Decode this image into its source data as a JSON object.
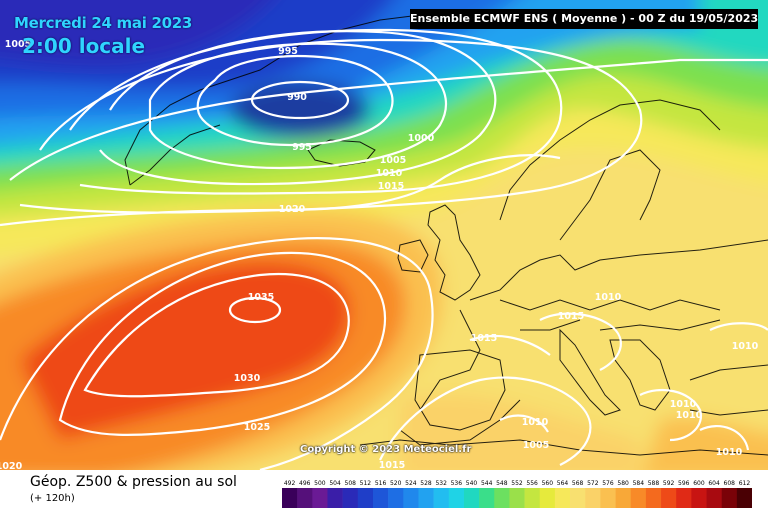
{
  "header": {
    "date": "Mercredi 24 mai 2023",
    "time": "2:00 locale",
    "model_info": "Ensemble ECMWF ENS  ( Moyenne )  -  00 Z du 19/05/2023"
  },
  "copyright": "Copyright © 2023 Meteociel.fr",
  "footer": {
    "title": "Géop. Z500 & pression au sol",
    "subtitle": "(+ 120h)"
  },
  "legend": {
    "values": [
      "492",
      "496",
      "500",
      "504",
      "508",
      "512",
      "516",
      "520",
      "524",
      "528",
      "532",
      "536",
      "540",
      "544",
      "548",
      "552",
      "556",
      "560",
      "564",
      "568",
      "572",
      "576",
      "580",
      "584",
      "588",
      "592",
      "596",
      "600",
      "604",
      "608",
      "612"
    ],
    "colors": [
      "#3a005a",
      "#55107a",
      "#6a1a95",
      "#3a1ea8",
      "#2a2ab8",
      "#1f3ec8",
      "#1e56d8",
      "#1e6ee4",
      "#2088ec",
      "#22a2f0",
      "#22bdf0",
      "#1fd3e6",
      "#20d8c0",
      "#3ade8a",
      "#6ce060",
      "#9ae04a",
      "#c4e640",
      "#e6ea3c",
      "#f6e85a",
      "#f8e070",
      "#fad268",
      "#fac050",
      "#f8a838",
      "#f88a28",
      "#f46a1e",
      "#ee4a18",
      "#e02a16",
      "#c81412",
      "#a80a10",
      "#7a0208",
      "#4a0004"
    ]
  },
  "isobars": {
    "labels": [
      "995",
      "990",
      "995",
      "1000",
      "1005",
      "1010",
      "1015",
      "1020",
      "1035",
      "1030",
      "1025",
      "1020",
      "1015",
      "1015",
      "1010",
      "1010",
      "1010",
      "1010",
      "1005",
      "1005",
      "1010",
      "1015",
      "1010"
    ]
  },
  "colors": {
    "isobar": "#ffffff",
    "date_text": "#2fd4ff",
    "header_bg": "#000000"
  }
}
